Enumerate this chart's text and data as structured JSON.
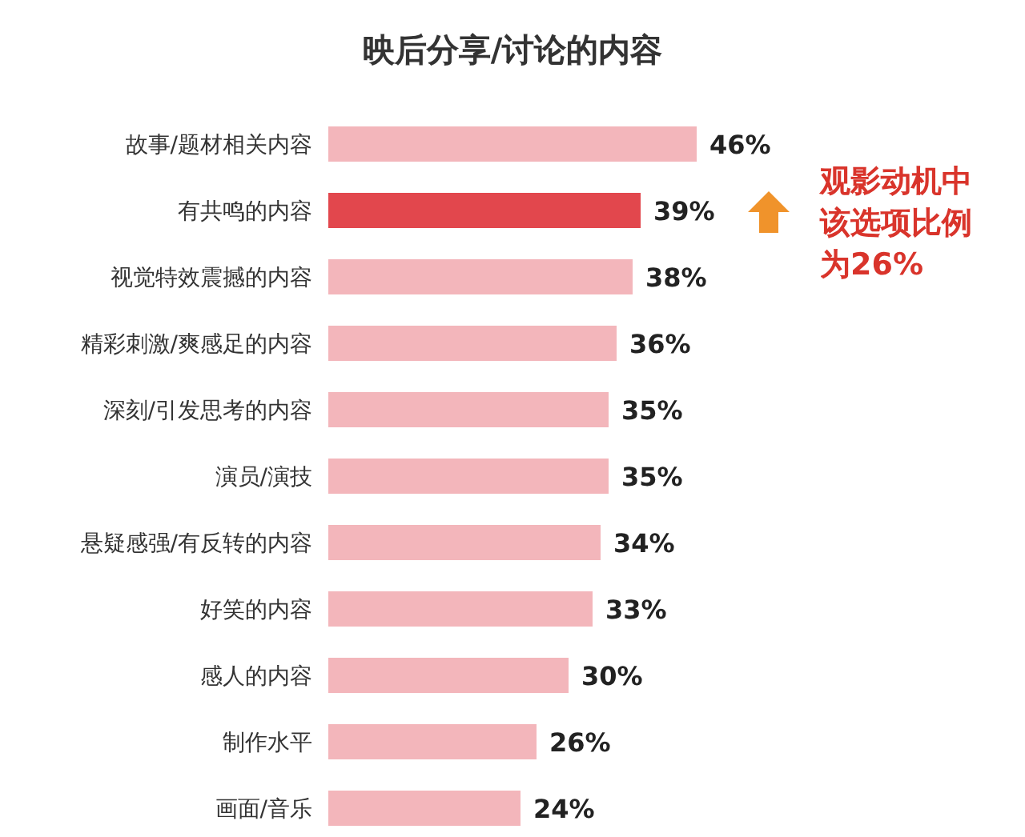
{
  "chart_data": {
    "type": "bar",
    "orientation": "horizontal",
    "title": "映后分享/讨论的内容",
    "categories": [
      "故事/题材相关内容",
      "有共鸣的内容",
      "视觉特效震撼的内容",
      "精彩刺激/爽感足的内容",
      "深刻/引发思考的内容",
      "演员/演技",
      "悬疑感强/有反转的内容",
      "好笑的内容",
      "感人的内容",
      "制作水平",
      "画面/音乐"
    ],
    "values": [
      46,
      39,
      38,
      36,
      35,
      35,
      34,
      33,
      30,
      26,
      24
    ],
    "value_labels": [
      "46%",
      "39%",
      "38%",
      "36%",
      "35%",
      "35%",
      "34%",
      "33%",
      "30%",
      "26%",
      "24%"
    ],
    "colors": [
      "#f3b6bb",
      "#e2474d",
      "#f3b6bb",
      "#f3b6bb",
      "#f3b6bb",
      "#f3b6bb",
      "#f3b6bb",
      "#f3b6bb",
      "#f3b6bb",
      "#f3b6bb",
      "#f3b6bb"
    ],
    "annotations": [
      "观影动机中该选项比例为26%"
    ]
  }
}
